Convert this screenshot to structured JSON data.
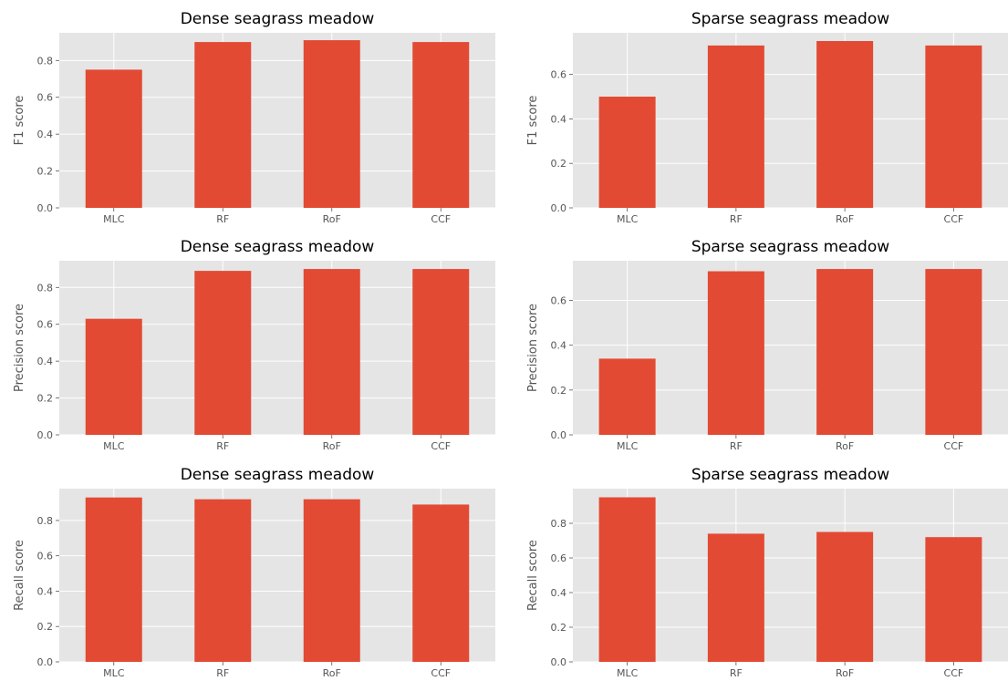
{
  "colors": {
    "bar": "#e24a33",
    "panel": "#e5e5e5",
    "grid": "#ffffff",
    "text": "#555555"
  },
  "chart_data": [
    {
      "type": "bar",
      "title": "Dense seagrass meadow",
      "ylabel": "F1 score",
      "categories": [
        "MLC",
        "RF",
        "RoF",
        "CCF"
      ],
      "values": [
        0.75,
        0.9,
        0.91,
        0.9
      ],
      "ylim": [
        0,
        0.95
      ],
      "yticks": [
        "0.0",
        "0.2",
        "0.4",
        "0.6",
        "0.8"
      ],
      "grid": true
    },
    {
      "type": "bar",
      "title": "Sparse seagrass meadow",
      "ylabel": "F1 score",
      "categories": [
        "MLC",
        "RF",
        "RoF",
        "CCF"
      ],
      "values": [
        0.5,
        0.73,
        0.75,
        0.73
      ],
      "ylim": [
        0,
        0.787
      ],
      "yticks": [
        "0.0",
        "0.2",
        "0.4",
        "0.6"
      ],
      "grid": true
    },
    {
      "type": "bar",
      "title": "Dense seagrass meadow",
      "ylabel": "Precision score",
      "categories": [
        "MLC",
        "RF",
        "RoF",
        "CCF"
      ],
      "values": [
        0.63,
        0.89,
        0.9,
        0.9
      ],
      "ylim": [
        0,
        0.945
      ],
      "yticks": [
        "0.0",
        "0.2",
        "0.4",
        "0.6",
        "0.8"
      ],
      "grid": true
    },
    {
      "type": "bar",
      "title": "Sparse seagrass meadow",
      "ylabel": "Precision score",
      "categories": [
        "MLC",
        "RF",
        "RoF",
        "CCF"
      ],
      "values": [
        0.34,
        0.73,
        0.74,
        0.74
      ],
      "ylim": [
        0,
        0.777
      ],
      "yticks": [
        "0.0",
        "0.2",
        "0.4",
        "0.6"
      ],
      "grid": true
    },
    {
      "type": "bar",
      "title": "Dense seagrass meadow",
      "ylabel": "Recall score",
      "categories": [
        "MLC",
        "RF",
        "RoF",
        "CCF"
      ],
      "values": [
        0.93,
        0.92,
        0.92,
        0.89
      ],
      "ylim": [
        0,
        0.98
      ],
      "yticks": [
        "0.0",
        "0.2",
        "0.4",
        "0.6",
        "0.8"
      ],
      "grid": true
    },
    {
      "type": "bar",
      "title": "Sparse seagrass meadow",
      "ylabel": "Recall score",
      "categories": [
        "MLC",
        "RF",
        "RoF",
        "CCF"
      ],
      "values": [
        0.95,
        0.74,
        0.75,
        0.72
      ],
      "ylim": [
        0,
        1.0
      ],
      "yticks": [
        "0.0",
        "0.2",
        "0.4",
        "0.6",
        "0.8"
      ],
      "grid": true
    }
  ]
}
